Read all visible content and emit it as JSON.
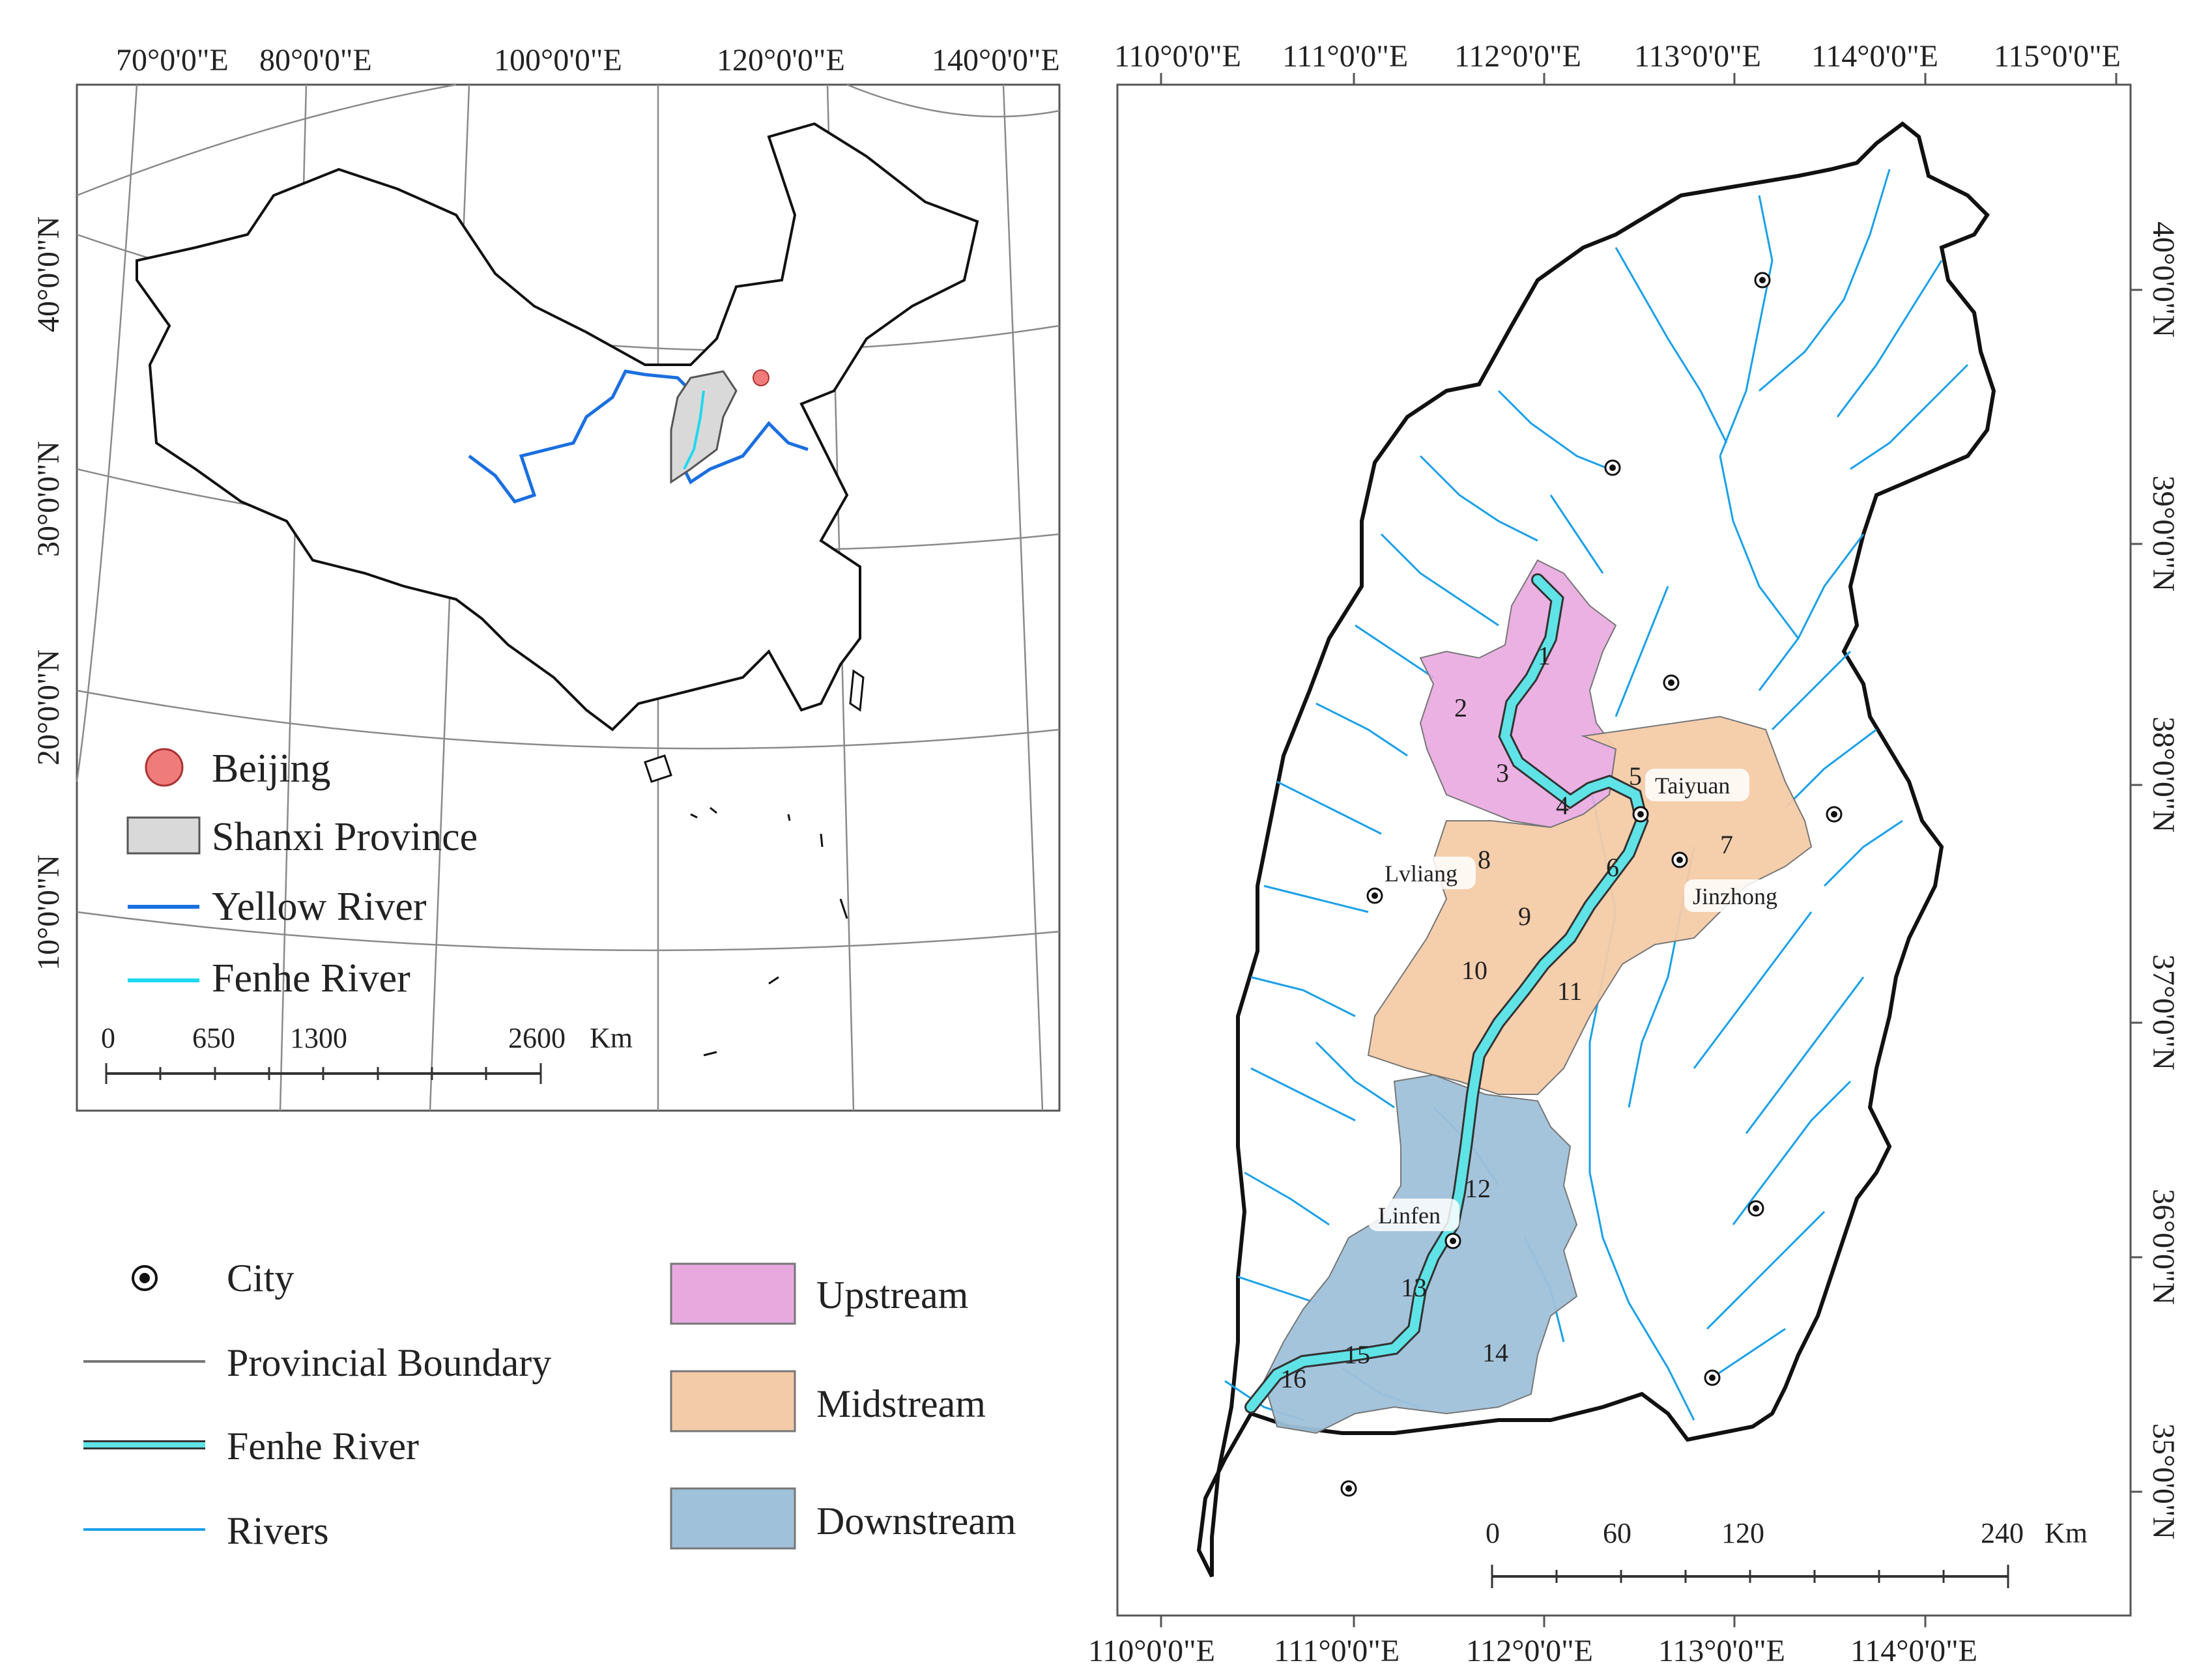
{
  "inset_map": {
    "top_lon_labels": [
      "70°0'0\"E",
      "80°0'0\"E",
      "100°0'0\"E",
      "120°0'0\"E",
      "140°0'0\"E"
    ],
    "left_lat_labels": [
      "40°0'0\"N",
      "30°0'0\"N",
      "20°0'0\"N",
      "10°0'0\"N"
    ],
    "legend": [
      {
        "label": "Beijing",
        "color": "#f07b7b"
      },
      {
        "label": "Shanxi Province",
        "color": "#d9d9d9"
      },
      {
        "label": "Yellow River",
        "color": "#1a6fe0"
      },
      {
        "label": "Fenhe River",
        "color": "#1ed8f0"
      }
    ],
    "scale": {
      "ticks": [
        "0",
        "650",
        "1300",
        "2600"
      ],
      "unit": "Km"
    }
  },
  "main_map": {
    "top_lon_labels": [
      "110°0'0\"E",
      "111°0'0\"E",
      "112°0'0\"E",
      "113°0'0\"E",
      "114°0'0\"E",
      "115°0'0\"E"
    ],
    "bottom_lon_labels": [
      "110°0'0\"E",
      "111°0'0\"E",
      "112°0'0\"E",
      "113°0'0\"E",
      "114°0'0\"E"
    ],
    "right_lat_labels": [
      "40°0'0\"N",
      "39°0'0\"N",
      "38°0'0\"N",
      "37°0'0\"N",
      "36°0'0\"N",
      "35°0'0\"N"
    ],
    "cities": [
      "Taiyuan",
      "Jinzhong",
      "Lvliang",
      "Linfen"
    ],
    "sub_basins": [
      "1",
      "2",
      "3",
      "4",
      "5",
      "6",
      "7",
      "8",
      "9",
      "10",
      "11",
      "12",
      "13",
      "14",
      "15",
      "16"
    ],
    "scale": {
      "ticks": [
        "0",
        "60",
        "120",
        "240"
      ],
      "unit": "Km"
    }
  },
  "legend_bottom": {
    "items": [
      {
        "label": "City",
        "icon": "city-point-icon"
      },
      {
        "label": "Provincial Boundary",
        "icon": "boundary-line-icon"
      },
      {
        "label": "Fenhe River",
        "icon": "fenhe-river-line-icon"
      },
      {
        "label": "Rivers",
        "icon": "river-line-icon"
      }
    ],
    "zones": [
      {
        "label": "Upstream",
        "color": "#e8a9df"
      },
      {
        "label": "Midstream",
        "color": "#f4cba8"
      },
      {
        "label": "Downstream",
        "color": "#9fc1da"
      }
    ]
  },
  "colors": {
    "river": "#1aa0e8",
    "fenhe": "#5fe3e6",
    "upstream": "#e8a9df",
    "midstream": "#f4cba8",
    "downstream": "#9fc1da"
  }
}
